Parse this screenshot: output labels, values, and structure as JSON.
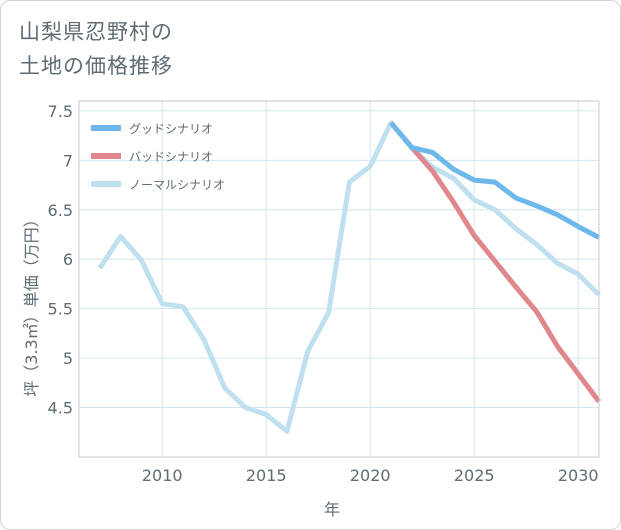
{
  "title_line1": "山梨県忍野村の",
  "title_line2": "土地の価格推移",
  "chart_data": {
    "type": "line",
    "xlabel": "年",
    "ylabel": "坪（3.3㎡）単価（万円）",
    "xlim": [
      2006,
      2031
    ],
    "ylim": [
      4,
      7.6
    ],
    "xticks": [
      2010,
      2015,
      2020,
      2025,
      2030
    ],
    "yticks": [
      4.5,
      5,
      5.5,
      6,
      6.5,
      7,
      7.5
    ],
    "xtick_labels": [
      "2010",
      "2015",
      "2020",
      "2025",
      "2030"
    ],
    "ytick_labels": [
      "4.5",
      "5",
      "5.5",
      "6",
      "6.5",
      "7",
      "7.5"
    ],
    "legend_position": "top-left",
    "series": [
      {
        "name": "グッドシナリオ",
        "color": "#6cb8ea",
        "x": [
          2021,
          2022,
          2023,
          2024,
          2025,
          2026,
          2027,
          2028,
          2029,
          2030,
          2031
        ],
        "y": [
          7.38,
          7.13,
          7.08,
          6.91,
          6.8,
          6.78,
          6.62,
          6.54,
          6.45,
          6.33,
          6.22
        ]
      },
      {
        "name": "バッドシナリオ",
        "color": "#e0878e",
        "x": [
          2021,
          2022,
          2023,
          2024,
          2025,
          2026,
          2027,
          2028,
          2029,
          2030,
          2031
        ],
        "y": [
          7.38,
          7.13,
          6.89,
          6.58,
          6.24,
          5.98,
          5.72,
          5.47,
          5.12,
          4.84,
          4.56
        ]
      },
      {
        "name": "ノーマルシナリオ",
        "color": "#bfe0ee",
        "x": [
          2007,
          2008,
          2009,
          2010,
          2011,
          2012,
          2013,
          2014,
          2015,
          2016,
          2017,
          2018,
          2019,
          2020,
          2021,
          2022,
          2023,
          2024,
          2025,
          2026,
          2027,
          2028,
          2029,
          2030,
          2031
        ],
        "y": [
          5.91,
          6.23,
          5.99,
          5.55,
          5.52,
          5.19,
          4.7,
          4.5,
          4.43,
          4.26,
          5.07,
          5.46,
          6.78,
          6.94,
          7.38,
          7.13,
          6.93,
          6.82,
          6.6,
          6.5,
          6.31,
          6.15,
          5.96,
          5.85,
          5.64
        ]
      }
    ]
  }
}
